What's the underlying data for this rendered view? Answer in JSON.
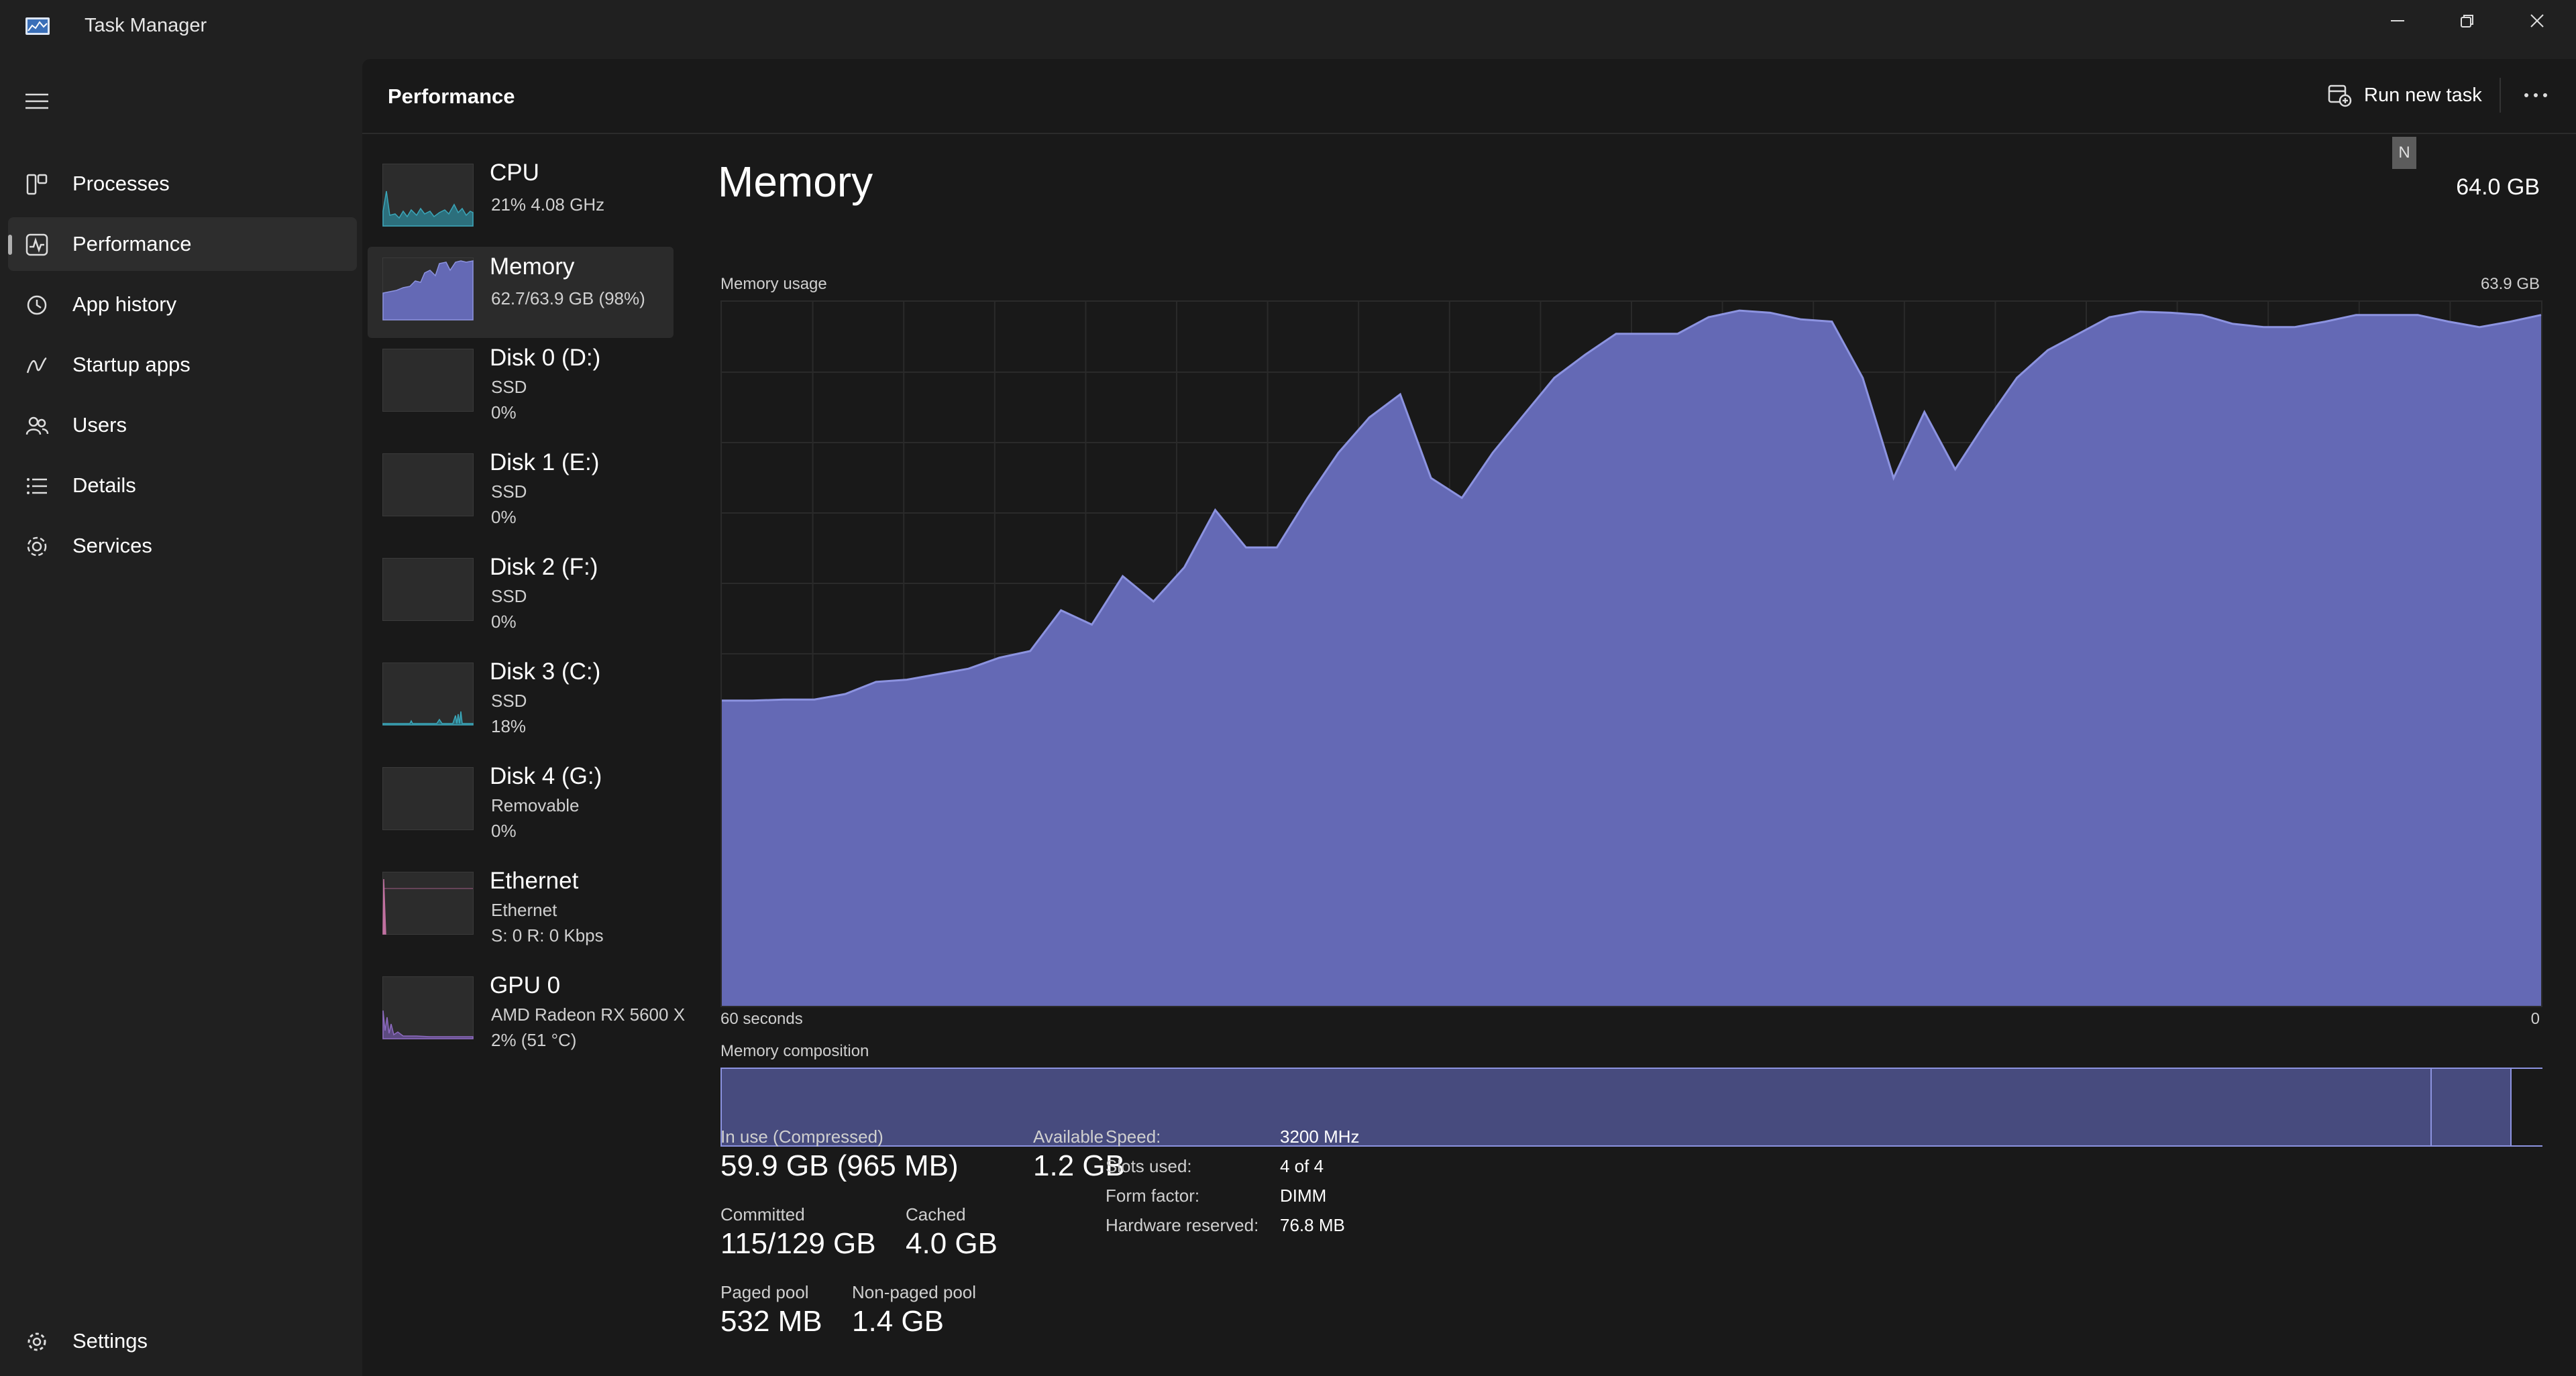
{
  "window": {
    "title": "Task Manager"
  },
  "nav": {
    "items": [
      {
        "label": "Processes",
        "icon": "processes-icon",
        "active": false
      },
      {
        "label": "Performance",
        "icon": "performance-icon",
        "active": true
      },
      {
        "label": "App history",
        "icon": "history-icon",
        "active": false
      },
      {
        "label": "Startup apps",
        "icon": "startup-icon",
        "active": false
      },
      {
        "label": "Users",
        "icon": "users-icon",
        "active": false
      },
      {
        "label": "Details",
        "icon": "details-icon",
        "active": false
      },
      {
        "label": "Services",
        "icon": "services-icon",
        "active": false
      }
    ],
    "settings_label": "Settings"
  },
  "header": {
    "title": "Performance",
    "run_task_label": "Run new task",
    "more_label": "···"
  },
  "devices": [
    {
      "name": "CPU",
      "line1": "21%  4.08 GHz",
      "line2": "",
      "active": false
    },
    {
      "name": "Memory",
      "line1": "62.7/63.9 GB (98%)",
      "line2": "",
      "active": true
    },
    {
      "name": "Disk 0 (D:)",
      "line1": "SSD",
      "line2": "0%",
      "active": false
    },
    {
      "name": "Disk 1 (E:)",
      "line1": "SSD",
      "line2": "0%",
      "active": false
    },
    {
      "name": "Disk 2 (F:)",
      "line1": "SSD",
      "line2": "0%",
      "active": false
    },
    {
      "name": "Disk 3 (C:)",
      "line1": "SSD",
      "line2": "18%",
      "active": false
    },
    {
      "name": "Disk 4 (G:)",
      "line1": "Removable",
      "line2": "0%",
      "active": false
    },
    {
      "name": "Ethernet",
      "line1": "Ethernet",
      "line2": "S: 0  R: 0 Kbps",
      "active": false
    },
    {
      "name": "GPU 0",
      "line1": "AMD Radeon RX 5600 X",
      "line2": "2%  (51 °C)",
      "active": false
    }
  ],
  "memory": {
    "title": "Memory",
    "total": "64.0 GB",
    "badge": "N",
    "usage_label": "Memory usage",
    "usage_max": "63.9 GB",
    "time_left": "60 seconds",
    "time_right": "0",
    "composition_label": "Memory composition",
    "composition": {
      "in_use": 0.939,
      "modified": 0.044,
      "standby": 0.017
    },
    "stats": {
      "in_use_label": "In use (Compressed)",
      "in_use_value": "59.9 GB (965 MB)",
      "available_label": "Available",
      "available_value": "1.2 GB",
      "committed_label": "Committed",
      "committed_value": "115/129 GB",
      "cached_label": "Cached",
      "cached_value": "4.0 GB",
      "paged_label": "Paged pool",
      "paged_value": "532 MB",
      "nonpaged_label": "Non-paged pool",
      "nonpaged_value": "1.4 GB"
    },
    "details": {
      "speed_label": "Speed:",
      "speed_value": "3200 MHz",
      "slots_label": "Slots used:",
      "slots_value": "4 of 4",
      "form_label": "Form factor:",
      "form_value": "DIMM",
      "reserved_label": "Hardware reserved:",
      "reserved_value": "76.8 MB"
    }
  },
  "colors": {
    "memory_fill": "#6469b5",
    "memory_line": "#8c93e0",
    "cpu": "#3aa6b9",
    "ethernet": "#c070a0",
    "gpu": "#8e6bc2"
  },
  "chart_data": {
    "type": "area",
    "title": "Memory usage",
    "xlabel": "",
    "ylabel": "",
    "x_range": [
      60,
      0
    ],
    "ylim": [
      0,
      63.9
    ],
    "series": [
      {
        "name": "",
        "values": [
          27.7,
          27.7,
          27.8,
          27.8,
          28.3,
          29.4,
          29.6,
          30.1,
          30.6,
          31.6,
          32.2,
          35.9,
          34.6,
          39.0,
          36.7,
          39.8,
          45.0,
          41.6,
          41.6,
          46.1,
          50.2,
          53.4,
          55.5,
          47.9,
          46.1,
          50.2,
          53.6,
          57.0,
          59.1,
          61.0,
          61.0,
          61.0,
          62.5,
          63.1,
          62.9,
          62.3,
          62.1,
          57.0,
          47.9,
          53.9,
          48.7,
          53.0,
          57.0,
          59.5,
          61.0,
          62.5,
          63.0,
          62.9,
          62.7,
          61.9,
          61.6,
          61.6,
          62.1,
          62.7,
          62.7,
          62.7,
          62.1,
          61.6,
          62.1,
          62.7
        ]
      }
    ]
  }
}
